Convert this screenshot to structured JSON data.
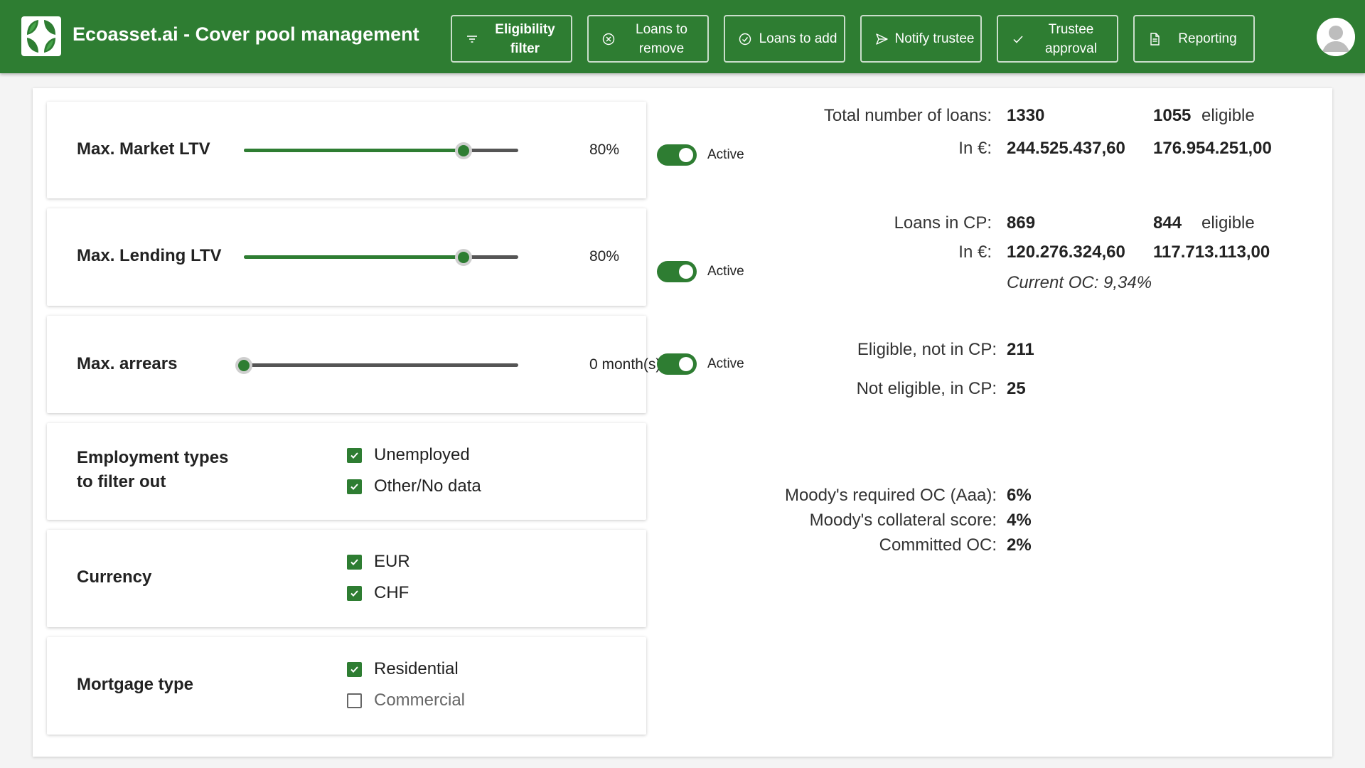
{
  "header": {
    "title": "Ecoasset.ai - Cover pool management",
    "brand_color": "#2e7d32",
    "nav": [
      {
        "label": "Eligibility filter",
        "icon": "filter-icon",
        "active": true
      },
      {
        "label": "Loans to remove",
        "icon": "circle-x-icon",
        "active": false
      },
      {
        "label": "Loans to add",
        "icon": "circle-check-icon",
        "active": false
      },
      {
        "label": "Notify trustee",
        "icon": "send-icon",
        "active": false
      },
      {
        "label": "Trustee approval",
        "icon": "check-icon",
        "active": false
      },
      {
        "label": "Reporting",
        "icon": "document-icon",
        "active": false
      }
    ]
  },
  "filters": {
    "market_ltv": {
      "label": "Max. Market LTV",
      "value_text": "80%",
      "fraction": 0.8,
      "active_label": "Active",
      "active": true
    },
    "lending_ltv": {
      "label": "Max. Lending LTV",
      "value_text": "80%",
      "fraction": 0.8,
      "active_label": "Active",
      "active": true
    },
    "arrears": {
      "label": "Max. arrears",
      "value_text": "0 month(s)",
      "fraction": 0.0,
      "active_label": "Active",
      "active": true
    },
    "employment": {
      "label_line1": "Employment types",
      "label_line2": "to filter out",
      "options": [
        {
          "label": "Unemployed",
          "checked": true
        },
        {
          "label": "Other/No data",
          "checked": true
        }
      ]
    },
    "currency": {
      "label": "Currency",
      "options": [
        {
          "label": "EUR",
          "checked": true
        },
        {
          "label": "CHF",
          "checked": true
        }
      ]
    },
    "mortgage": {
      "label": "Mortgage type",
      "options": [
        {
          "label": "Residential",
          "checked": true
        },
        {
          "label": "Commercial",
          "checked": false
        }
      ]
    }
  },
  "stats": {
    "total_loans": {
      "label": "Total number of loans:",
      "value": "1330",
      "eligible": "1055",
      "eligible_label": "eligible"
    },
    "total_eur": {
      "label": "In €:",
      "value": "244.525.437,60",
      "eligible": "176.954.251,00"
    },
    "cp_loans": {
      "label": "Loans in CP:",
      "value": "869",
      "eligible": "844",
      "eligible_label": "eligible"
    },
    "cp_eur": {
      "label": "In €:",
      "value": "120.276.324,60",
      "eligible": "117.713.113,00"
    },
    "current_oc": "Current OC: 9,34%",
    "eligible_not_cp": {
      "label": "Eligible, not in CP:",
      "value": "211"
    },
    "not_eligible_cp": {
      "label": "Not eligible, in CP:",
      "value": "25"
    },
    "moodys_required": {
      "label": "Moody's required OC (Aaa):",
      "value": "6%"
    },
    "moodys_collateral": {
      "label": "Moody's collateral score:",
      "value": "4%"
    },
    "committed_oc": {
      "label": "Committed OC:",
      "value": "2%"
    }
  }
}
